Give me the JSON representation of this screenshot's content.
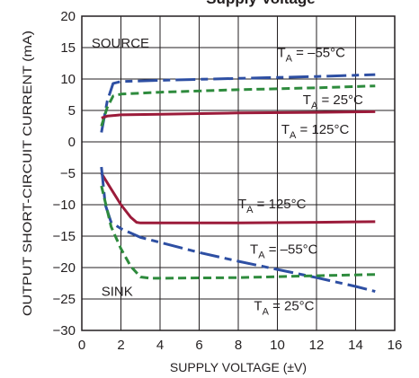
{
  "chart_data": {
    "type": "line",
    "title": "Supply Voltage",
    "xlabel": "SUPPLY VOLTAGE (±V)",
    "ylabel": "OUTPUT SHORT-CIRCUIT CURRENT (mA)",
    "xlim": [
      0,
      16
    ],
    "ylim": [
      -30,
      20
    ],
    "xticks": [
      0,
      2,
      4,
      6,
      8,
      10,
      12,
      14,
      16
    ],
    "yticks": [
      20,
      15,
      10,
      5,
      0,
      -5,
      -10,
      -15,
      -20,
      -25,
      -30
    ],
    "grid": true,
    "series": [
      {
        "name": "T_A = –55°C",
        "group": "SOURCE",
        "color": "#2e4fa3",
        "dash": "long-dash",
        "x": [
          1.0,
          1.3,
          1.6,
          2.0,
          4,
          8,
          12,
          15
        ],
        "y": [
          1.5,
          6.5,
          9.3,
          9.6,
          9.8,
          10.1,
          10.4,
          10.7
        ]
      },
      {
        "name": "T_A = 25°C",
        "group": "SOURCE",
        "color": "#2e8b3d",
        "dash": "dash",
        "x": [
          1.0,
          1.3,
          1.6,
          2.0,
          4,
          8,
          12,
          15
        ],
        "y": [
          2.5,
          5.5,
          7.3,
          7.6,
          7.9,
          8.3,
          8.6,
          8.9
        ]
      },
      {
        "name": "T_A = 125°C",
        "group": "SOURCE",
        "color": "#9b1b3a",
        "dash": "solid",
        "x": [
          1.0,
          1.3,
          2.0,
          4,
          8,
          12,
          15
        ],
        "y": [
          3.8,
          4.1,
          4.3,
          4.4,
          4.6,
          4.7,
          4.8
        ]
      },
      {
        "name": "T_A = 125°C",
        "group": "SINK",
        "color": "#9b1b3a",
        "dash": "solid",
        "x": [
          1.0,
          1.5,
          2.0,
          2.5,
          2.8,
          3.0,
          4,
          8,
          12,
          15
        ],
        "y": [
          -5.0,
          -7.5,
          -10.0,
          -12.0,
          -12.8,
          -12.9,
          -12.9,
          -12.9,
          -12.8,
          -12.7
        ]
      },
      {
        "name": "T_A = –55°C",
        "group": "SINK",
        "color": "#2e4fa3",
        "dash": "long-dash",
        "x": [
          1.0,
          1.2,
          1.5,
          2.0,
          3.0,
          4,
          6,
          8,
          10,
          12,
          14,
          15
        ],
        "y": [
          -4.0,
          -10.0,
          -12.8,
          -13.8,
          -15.2,
          -16.0,
          -17.6,
          -19.0,
          -20.3,
          -21.6,
          -23.0,
          -23.8
        ]
      },
      {
        "name": "T_A = 25°C",
        "group": "SINK",
        "color": "#2e8b3d",
        "dash": "dash",
        "x": [
          1.0,
          1.5,
          2.0,
          2.5,
          3.0,
          3.5,
          4,
          8,
          12,
          15
        ],
        "y": [
          -7.0,
          -13.5,
          -17.0,
          -19.8,
          -21.5,
          -21.7,
          -21.7,
          -21.6,
          -21.3,
          -21.1
        ]
      }
    ],
    "annotations": [
      {
        "text": "SOURCE",
        "x": 0.5,
        "y": 15
      },
      {
        "text": "SINK",
        "x": 1.0,
        "y": -24.5
      },
      {
        "text": "T_A = –55°C",
        "x": 10.0,
        "y": 13.5
      },
      {
        "text": "T_A = 25°C",
        "x": 11.3,
        "y": 6.0
      },
      {
        "text": "T_A = 125°C",
        "x": 10.2,
        "y": 1.3
      },
      {
        "text": "T_A = 125°C",
        "x": 8.0,
        "y": -10.6
      },
      {
        "text": "T_A = –55°C",
        "x": 8.6,
        "y": -17.8
      },
      {
        "text": "T_A = 25°C",
        "x": 8.8,
        "y": -26.8
      }
    ]
  }
}
